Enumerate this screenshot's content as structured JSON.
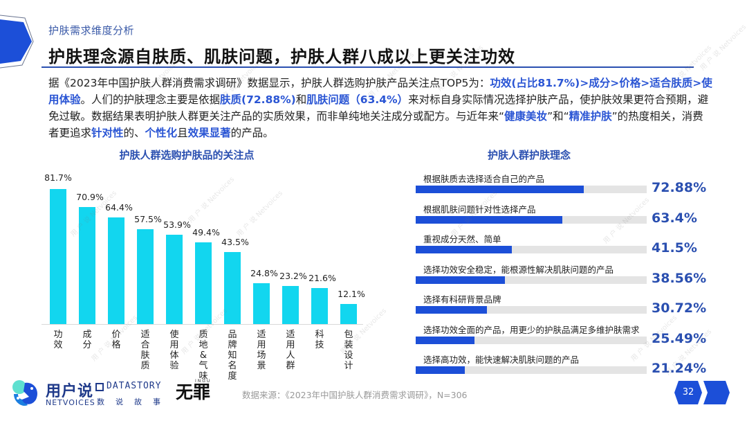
{
  "header": {
    "subtitle": "护肤需求维度分析",
    "title": "护肤理念源自肤质、肌肤问题，护肤人群八成以上更关注功效"
  },
  "intro": {
    "segments": [
      {
        "text": "据《2023年中国护肤人群消费需求调研》数据显示，护肤人群选购护肤产品关注点TOP5为：",
        "hl": false
      },
      {
        "text": "功效(占比81.7%)>成分>价格>适合肤质>使用体验",
        "hl": true
      },
      {
        "text": "。人们的护肤理念主要是依据",
        "hl": false
      },
      {
        "text": "肤质(72.88%)",
        "hl": true
      },
      {
        "text": "和",
        "hl": false
      },
      {
        "text": "肌肤问题（63.4%）",
        "hl": true
      },
      {
        "text": "来对标自身实际情况选择护肤产品，使护肤效果更符合预期，避免过敏。数据结果表明护肤人群更关注产品的实质效果，而非单纯地关注成分或配方。与近年来“",
        "hl": false
      },
      {
        "text": "健康美妆",
        "hl": true
      },
      {
        "text": "”和“",
        "hl": false
      },
      {
        "text": "精准护肤",
        "hl": true
      },
      {
        "text": "”的热度相关，消费者更追求",
        "hl": false
      },
      {
        "text": "针对性",
        "hl": true
      },
      {
        "text": "的、",
        "hl": false
      },
      {
        "text": "个性化",
        "hl": true
      },
      {
        "text": "且",
        "hl": false
      },
      {
        "text": "效果显著",
        "hl": true
      },
      {
        "text": "的产品。",
        "hl": false
      }
    ]
  },
  "chart_data": [
    {
      "type": "bar",
      "title": "护肤人群选购护肤品的关注点",
      "categories": [
        "功效",
        "成分",
        "价格",
        "适合肤质",
        "使用体验",
        "质地&气味",
        "品牌知名度",
        "适用场景",
        "适用人群",
        "科技",
        "包装设计"
      ],
      "values": [
        81.7,
        70.9,
        64.4,
        57.5,
        53.9,
        49.4,
        43.5,
        24.8,
        23.2,
        21.6,
        12.1
      ],
      "value_labels": [
        "81.7%",
        "70.9%",
        "64.4%",
        "57.5%",
        "53.9%",
        "49.4%",
        "43.5%",
        "24.8%",
        "23.2%",
        "21.6%",
        "12.1%"
      ],
      "xlabel": "",
      "ylabel": "",
      "ylim": [
        0,
        85
      ],
      "grid": false,
      "legend": "none",
      "bar_color": "#12d6ef"
    },
    {
      "type": "bar",
      "orientation": "horizontal",
      "title": "护肤人群护肤理念",
      "categories": [
        "根据肤质去选择适合自己的产品",
        "根据肌肤问题针对性选择产品",
        "重视成分天然、简单",
        "选择功效安全稳定，能根源性解决肌肤问题的产品",
        "选择有科研背景品牌",
        "选择功效全面的产品，用更少的护肤品满足多维护肤需求",
        "选择高功效，能快速解决肌肤问题的产品"
      ],
      "values": [
        72.88,
        63.4,
        41.5,
        38.56,
        30.72,
        25.49,
        21.24
      ],
      "value_labels": [
        "72.88%",
        "63.4%",
        "41.5%",
        "38.56%",
        "30.72%",
        "25.49%",
        "21.24%"
      ],
      "xlim": [
        0,
        100
      ],
      "grid": false,
      "legend": "none",
      "bar_color": "#1c4fd8",
      "track_color": "#e4e4e4",
      "value_color": "#2a4fb0"
    }
  ],
  "footer": {
    "logo_netvoices_cn": "用户说",
    "logo_netvoices_en": "NETVOICES",
    "logo_datastory_en": "DATASTORY",
    "logo_datastory_cn": "数说故事",
    "logo_wuzui_cn": "无罪",
    "logo_wuzui_small": "INGU",
    "source": "数据来源：《2023年中国护肤人群消费需求调研》，N=306",
    "page_number": "32"
  },
  "colors": {
    "accent_blue": "#1c4fd8",
    "title_blue": "#2a4fb0",
    "bar_cyan": "#12d6ef",
    "track_gray": "#e4e4e4"
  },
  "watermark": {
    "text_cn": "用 户 说",
    "text_en": "Netvoices"
  }
}
